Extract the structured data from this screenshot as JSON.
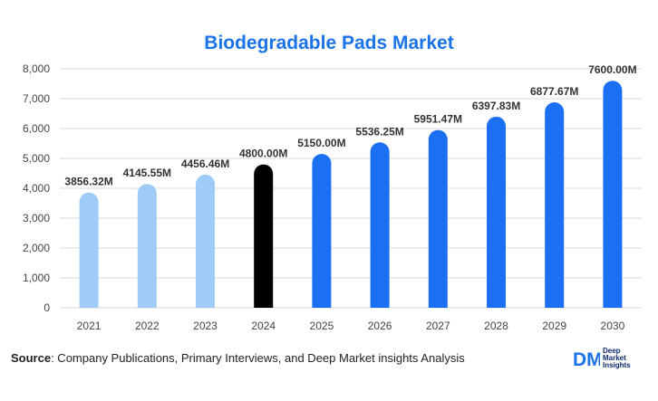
{
  "title": "Biodegradable Pads Market",
  "source": {
    "label": "Source",
    "text": ": Company Publications, Primary Interviews, and Deep Market insights Analysis"
  },
  "logo": {
    "mark": "DM",
    "lines": [
      "Deep",
      "Market",
      "Insights"
    ],
    "colors": [
      "#1a73e8",
      "#0b2a6b"
    ]
  },
  "chart_data": {
    "type": "bar",
    "title": "Biodegradable Pads Market",
    "xlabel": "",
    "ylabel": "",
    "categories": [
      "2021",
      "2022",
      "2023",
      "2024",
      "2025",
      "2026",
      "2027",
      "2028",
      "2029",
      "2030"
    ],
    "values": [
      3856.32,
      4145.55,
      4456.46,
      4800.0,
      5150.0,
      5536.25,
      5951.47,
      6397.83,
      6877.67,
      7600.0
    ],
    "data_labels": [
      "3856.32M",
      "4145.55M",
      "4456.46M",
      "4800.00M",
      "5150.00M",
      "5536.25M",
      "5951.47M",
      "6397.83M",
      "6877.67M",
      "7600.00M"
    ],
    "ylim": [
      0,
      8000
    ],
    "yticks": [
      0,
      1000,
      2000,
      3000,
      4000,
      5000,
      6000,
      7000,
      8000
    ],
    "ytick_labels": [
      "0",
      "1,000",
      "2,000",
      "3,000",
      "4,000",
      "5,000",
      "6,000",
      "7,000",
      "8,000"
    ],
    "grid": true,
    "legend": "none",
    "bar_colors": [
      "#9ecbf7",
      "#9ecbf7",
      "#9ecbf7",
      "#000000",
      "#1a6ff2",
      "#1a6ff2",
      "#1a6ff2",
      "#1a6ff2",
      "#1a6ff2",
      "#1a6ff2"
    ]
  }
}
